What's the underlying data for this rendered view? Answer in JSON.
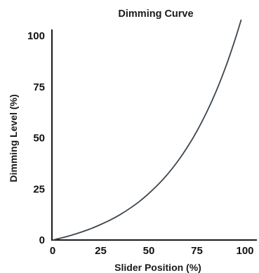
{
  "chart_data": {
    "type": "line",
    "title": "Dimming Curve",
    "xlabel": "Slider Position (%)",
    "ylabel": "Dimming Level (%)",
    "xlim": [
      0,
      100
    ],
    "ylim": [
      0,
      100
    ],
    "xticks": [
      "0",
      "25",
      "50",
      "75",
      "100"
    ],
    "yticks": [
      "0",
      "25",
      "50",
      "75",
      "100"
    ],
    "grid": false,
    "series": [
      {
        "color": "#3c4650",
        "x": [
          0,
          5,
          10,
          15,
          20,
          25,
          30,
          35,
          40,
          45,
          50,
          55,
          60,
          65,
          70,
          75,
          80,
          85,
          90,
          95,
          100
        ],
        "y": [
          0,
          1.1,
          2.4,
          3.9,
          5.6,
          7.6,
          9.8,
          12.4,
          15.4,
          18.8,
          22.8,
          27.3,
          32.5,
          38.5,
          45.4,
          53.3,
          62.4,
          72.8,
          84.8,
          98.6,
          114.0
        ]
      }
    ]
  }
}
